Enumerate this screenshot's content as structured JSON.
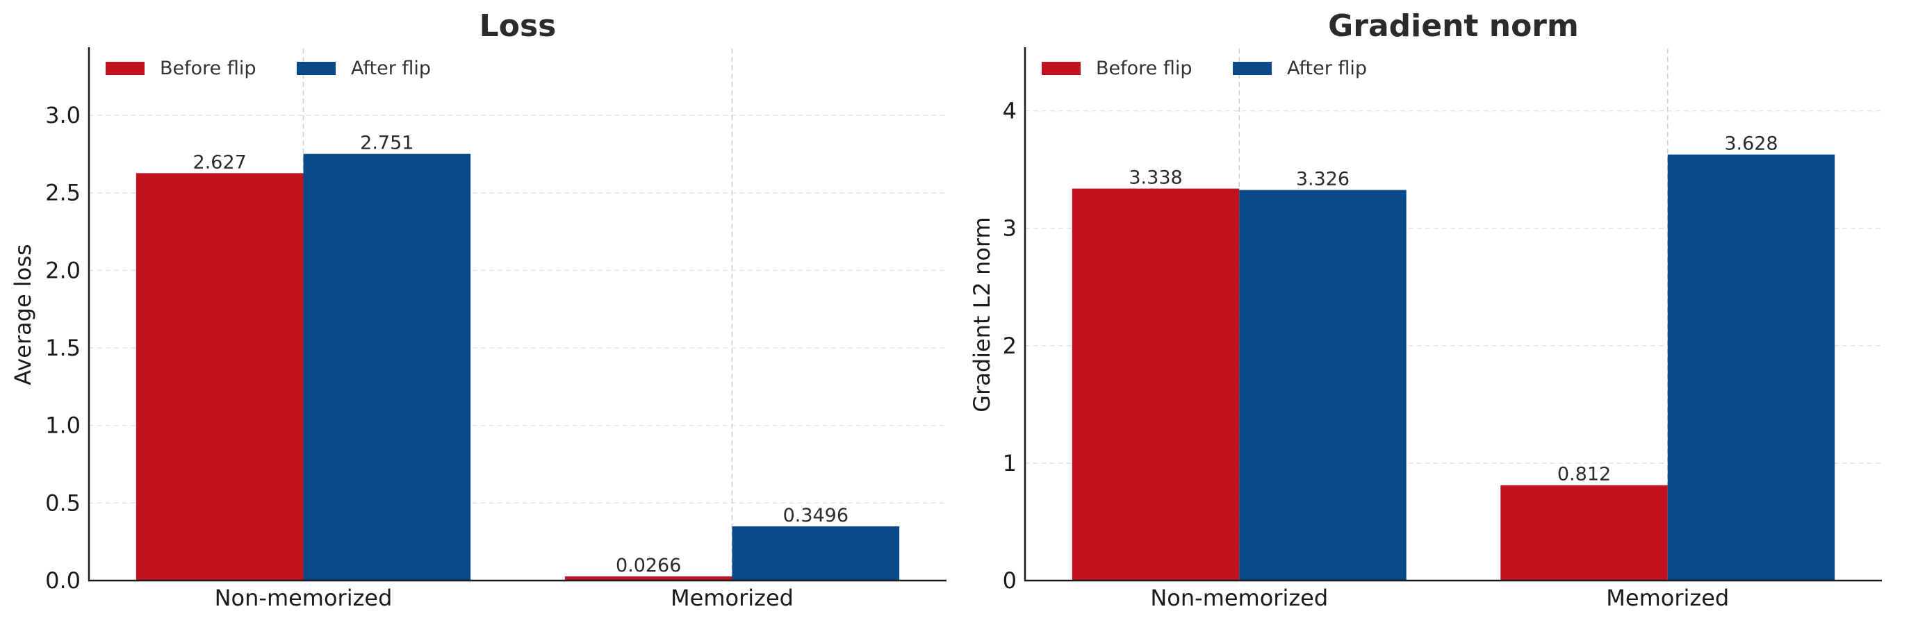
{
  "chart_data": [
    {
      "type": "bar",
      "title": "Loss",
      "xlabel": "",
      "ylabel": "Average loss",
      "categories": [
        "Non-memorized",
        "Memorized"
      ],
      "series": [
        {
          "name": "Before flip",
          "values": [
            2.627,
            0.0266
          ],
          "labels": [
            "2.627",
            "0.0266"
          ],
          "color": "#c0131f"
        },
        {
          "name": "After flip",
          "values": [
            2.751,
            0.3496
          ],
          "labels": [
            "2.751",
            "0.3496"
          ],
          "color": "#0b4a8a"
        }
      ],
      "ylim": [
        0,
        3.43
      ],
      "yticks": [
        0.0,
        0.5,
        1.0,
        1.5,
        2.0,
        2.5,
        3.0
      ],
      "ytick_labels": [
        "0.0",
        "0.5",
        "1.0",
        "1.5",
        "2.0",
        "2.5",
        "3.0"
      ],
      "grid": true,
      "legend_position": "top-left"
    },
    {
      "type": "bar",
      "title": "Gradient norm",
      "xlabel": "",
      "ylabel": "Gradient L2 norm",
      "categories": [
        "Non-memorized",
        "Memorized"
      ],
      "series": [
        {
          "name": "Before flip",
          "values": [
            3.338,
            0.812
          ],
          "labels": [
            "3.338",
            "0.812"
          ],
          "color": "#c0131f"
        },
        {
          "name": "After flip",
          "values": [
            3.326,
            3.628
          ],
          "labels": [
            "3.326",
            "3.628"
          ],
          "color": "#0b4a8a"
        }
      ],
      "ylim": [
        0,
        4.53
      ],
      "yticks": [
        0,
        1,
        2,
        3,
        4
      ],
      "ytick_labels": [
        "0",
        "1",
        "2",
        "3",
        "4"
      ],
      "grid": true,
      "legend_position": "top-left"
    }
  ]
}
